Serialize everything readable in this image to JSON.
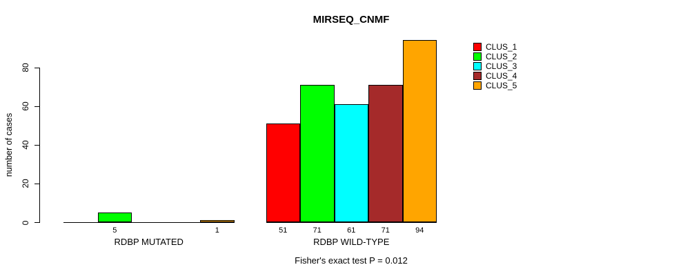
{
  "chart_data": {
    "type": "bar",
    "title": "MIRSEQ_CNMF",
    "ylabel": "number of cases",
    "xlabel": "",
    "yticks": [
      0,
      20,
      40,
      60,
      80
    ],
    "ylim": [
      0,
      94
    ],
    "grid": false,
    "legend_position": "top-right",
    "categories": [
      "RDBP MUTATED",
      "RDBP WILD-TYPE"
    ],
    "series": [
      {
        "name": "CLUS_1",
        "color": "#FF0000",
        "values": [
          0,
          51
        ]
      },
      {
        "name": "CLUS_2",
        "color": "#00FF00",
        "values": [
          5,
          71
        ]
      },
      {
        "name": "CLUS_3",
        "color": "#00FFFF",
        "values": [
          0,
          61
        ]
      },
      {
        "name": "CLUS_4",
        "color": "#A52A2A",
        "values": [
          0,
          71
        ]
      },
      {
        "name": "CLUS_5",
        "color": "#FFA500",
        "values": [
          1,
          94
        ]
      }
    ],
    "bar_value_labels": {
      "show_zero": false
    },
    "annotation": "Fisher's exact test P = 0.012"
  }
}
